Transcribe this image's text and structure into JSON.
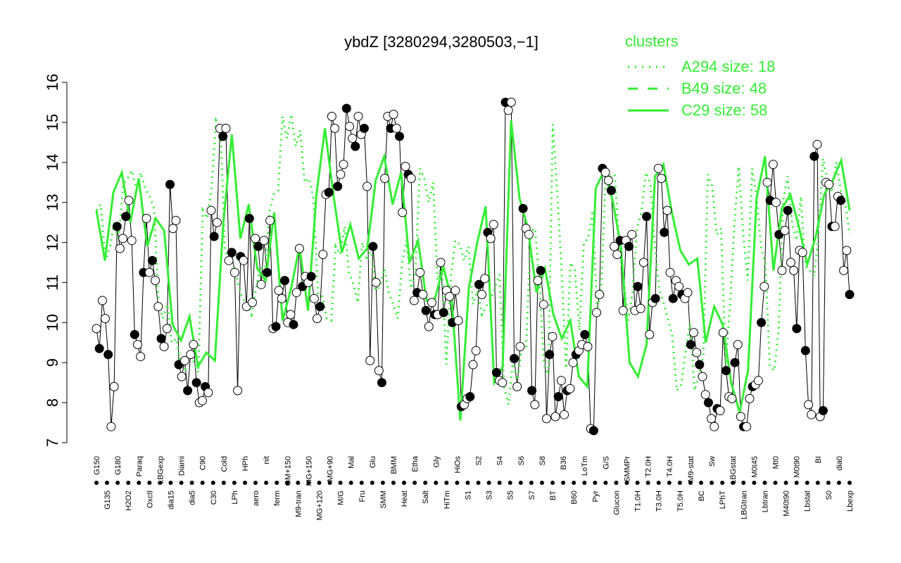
{
  "chart_data": {
    "type": "line",
    "title": "ybdZ [3280294,3280503,−1]",
    "xlabel": "",
    "ylabel": "",
    "ylim": [
      7,
      16
    ],
    "yticks": [
      7,
      8,
      9,
      10,
      11,
      12,
      13,
      14,
      15,
      16
    ],
    "grid": false,
    "x_tick_labels": [
      "G150",
      "G135",
      "G180",
      "H2O2",
      "Paraq",
      "Oxctl",
      "LBGexp",
      "dia15",
      "Diami",
      "dia5",
      "C90",
      "C30",
      "Cold",
      "LPh",
      "HPh",
      "aero",
      "nit",
      "ferm",
      "GM+150",
      "M9-tran",
      "MG+150",
      "MG+120",
      "MG+90",
      "M/G",
      "Mal",
      "Fru",
      "Glu",
      "SMM",
      "BMM",
      "Heat",
      "Etha",
      "Salt",
      "Gly",
      "HiTm",
      "HiOs",
      "S1",
      "S2",
      "S3",
      "S4",
      "S5",
      "S6",
      "S7",
      "S8",
      "BT",
      "B36",
      "B60",
      "LoTm",
      "Pyr",
      "G/S",
      "Glucon",
      "SMMPr",
      "T1.0H",
      "T2.0H",
      "T3.0H",
      "T4.0H",
      "T5.0H",
      "M9-stat",
      "BC",
      "Sw",
      "LPhT",
      "LBGstat",
      "LBGtran",
      "M0t45",
      "Lbtran",
      "Mt0",
      "M40t90",
      "M0t90",
      "Lbstat",
      "BI",
      "S0",
      "dia0",
      "Lbexp"
    ],
    "legend": {
      "title": "clusters",
      "placement": "top-right",
      "entries": [
        {
          "label": "A294 size: 18",
          "style": "dotted"
        },
        {
          "label": "B49 size: 48",
          "style": "dashed"
        },
        {
          "label": "C29 size: 58",
          "style": "solid"
        }
      ]
    },
    "colors": {
      "axis": "#000000",
      "cluster": "#33ee33",
      "point_open": "#ffffff",
      "point_filled": "#000000"
    },
    "series": [
      {
        "values": [
          9.85,
          9.35,
          10.55,
          10.1,
          9.2,
          7.4,
          8.4,
          12.4,
          11.85,
          12.1,
          12.65,
          13.05,
          12.05,
          9.7,
          9.45,
          9.15,
          11.25,
          12.6,
          11.25,
          11.55,
          11.05,
          10.4,
          9.6,
          9.4,
          9.85,
          13.45,
          12.35,
          12.55,
          8.95,
          8.65,
          9.05,
          8.3,
          9.2,
          9.45,
          8.5,
          8.0,
          8.05,
          8.4,
          8.25,
          12.8,
          12.15,
          12.5,
          14.85,
          14.65,
          14.85,
          11.55,
          11.75,
          11.25,
          8.3,
          11.65,
          11.55,
          10.4,
          12.6,
          10.5,
          12.1,
          11.9,
          10.95,
          12.05,
          11.25,
          12.55,
          9.85,
          9.9,
          10.8,
          10.6,
          11.05,
          10.0,
          10.2,
          9.95,
          10.75,
          11.85,
          10.9,
          11.15,
          11.0,
          11.15,
          10.6,
          10.1,
          10.4,
          11.7,
          13.2,
          13.25,
          15.15,
          14.85,
          13.4,
          13.7,
          13.95,
          15.35,
          14.9,
          14.6,
          14.4,
          15.15,
          14.7,
          14.85,
          13.4,
          9.05,
          11.9,
          11.0,
          8.8,
          8.5,
          13.6,
          15.15,
          14.85,
          15.2,
          14.85,
          14.65,
          12.75,
          13.9,
          13.7,
          13.6,
          10.55,
          10.75,
          11.25,
          10.7,
          10.3,
          9.9,
          10.5,
          10.2,
          10.2,
          11.5,
          10.25,
          10.8,
          10.65,
          10.0,
          10.8,
          10.05,
          7.9,
          7.95,
          8.1,
          8.15,
          8.95,
          9.3,
          10.95,
          10.7,
          11.1,
          12.25,
          12.1,
          12.45,
          8.75,
          8.55,
          8.5,
          15.5,
          15.3,
          15.5,
          9.1,
          8.4,
          9.4,
          12.85,
          12.35,
          12.2,
          8.3,
          7.95,
          11.05,
          11.3,
          10.45,
          7.6,
          9.2,
          9.65,
          7.65,
          8.15,
          8.55,
          7.7,
          8.3,
          8.35,
          9.0,
          9.2,
          9.3,
          9.45,
          9.7,
          9.4,
          7.35,
          7.3,
          10.25,
          10.7,
          13.85,
          13.75,
          13.55,
          13.3,
          11.9,
          11.7,
          12.05,
          10.3,
          12.05,
          11.9,
          12.2,
          10.3,
          10.9,
          10.35,
          11.5,
          12.65,
          9.7,
          10.5,
          10.6,
          13.85,
          13.6,
          12.25,
          12.8,
          11.25,
          10.6,
          11.05,
          10.9,
          10.7,
          10.6,
          10.75,
          9.45,
          9.75,
          9.25,
          8.95,
          8.65,
          8.2,
          8.0,
          7.6,
          7.4,
          7.85,
          7.8,
          9.75,
          8.8,
          8.15,
          8.1,
          9.0,
          9.45,
          7.65,
          7.4,
          7.4,
          8.1,
          8.4,
          8.45,
          8.55,
          10.0,
          10.9,
          13.5,
          13.05,
          13.95,
          13.0,
          12.2,
          11.3,
          12.3,
          12.8,
          11.5,
          11.3,
          9.85,
          11.8,
          11.75,
          9.3,
          7.95,
          7.7,
          14.15,
          14.45,
          7.65,
          7.8,
          13.5,
          13.45,
          12.4,
          12.4,
          13.15,
          13.05,
          11.3,
          11.8,
          10.7
        ]
      },
      {
        "values": [
          12.8,
          12.95,
          11.55,
          11.85,
          12.5,
          12.05,
          13.45,
          13.6,
          13.8,
          13.3,
          13.75,
          13.35,
          13.15,
          12.85,
          10.55,
          10.1,
          10.45,
          9.5,
          9.6,
          9.0,
          8.85,
          9.2,
          9.0,
          8.75,
          12.8,
          12.6,
          13.35,
          15.05,
          14.85,
          11.8,
          11.6,
          11.45,
          10.95,
          10.6,
          10.45,
          10.2,
          10.85,
          11.4,
          11.25,
          12.75,
          13.2,
          13.3,
          15.15,
          14.6,
          15.2,
          14.4,
          14.8,
          13.5,
          13.6,
          13.1,
          10.7,
          10.65,
          10.1,
          10.05,
          11.9,
          11.7,
          12.4,
          11.25,
          10.95,
          10.5,
          12.0,
          11.55,
          11.85,
          10.8,
          10.9,
          11.35,
          10.75,
          10.45,
          10.1,
          11.5,
          12.05,
          10.85,
          11.25,
          13.85,
          13.6,
          13.0,
          13.5,
          11.05,
          11.45,
          8.95,
          11.15,
          12.05,
          11.95,
          11.55,
          11.9,
          10.45,
          10.8,
          10.2,
          10.4,
          10.6,
          10.9,
          11.2,
          8.4,
          7.95,
          9.05,
          8.5,
          9.35,
          9.4,
          12.3,
          12.35,
          11.05,
          8.95,
          8.7,
          14.95,
          13.25,
          11.3,
          8.85,
          11.5,
          11.3,
          9.8,
          12.0,
          12.1,
          12.8,
          10.3,
          10.9,
          13.9,
          13.65,
          13.7,
          11.95,
          11.1,
          10.05,
          10.75,
          12.35,
          12.75,
          13.75,
          13.5,
          11.95,
          10.85,
          10.5,
          10.1,
          9.65,
          8.3,
          8.45,
          9.3,
          10.0,
          8.3,
          8.7,
          9.2,
          13.7,
          13.4,
          12.2,
          12.35,
          8.95,
          10.4,
          12.5,
          13.9,
          12.2,
          11.05,
          13.85,
          13.15,
          11.9,
          11.45,
          8.9,
          8.8,
          9.85,
          13.05,
          13.65,
          12.5,
          12.05,
          13.15,
          11.4,
          11.3,
          11.15,
          12.2,
          14.1,
          13.55,
          13.25,
          14.0,
          13.3,
          13.0,
          12.2
        ]
      },
      {
        "values": [
          12.8,
          11.55,
          13.25,
          13.75,
          12.5,
          13.6,
          11.9,
          12.6,
          12.3,
          9.95,
          9.55,
          10.15,
          8.9,
          9.25,
          9.05,
          12.5,
          14.7,
          12.1,
          12.95,
          11.35,
          11.05,
          12.75,
          10.05,
          10.85,
          11.9,
          10.3,
          13.2,
          14.85,
          13.2,
          11.75,
          12.45,
          11.6,
          11.85,
          13.55,
          14.15,
          12.95,
          13.75,
          11.5,
          12.05,
          10.55,
          10.6,
          11.4,
          10.55,
          7.55,
          10.85,
          12.0,
          12.9,
          8.5,
          8.9,
          15.05,
          13.1,
          12.35,
          10.75,
          11.35,
          10.2,
          9.6,
          10.05,
          8.65,
          8.4,
          13.35,
          13.8,
          13.05,
          11.85,
          9.0,
          8.65,
          9.45,
          13.65,
          13.95,
          12.75,
          11.8,
          11.45,
          11.6,
          9.5,
          10.4,
          9.95,
          8.5,
          7.75,
          8.8,
          13.1,
          14.15,
          11.3,
          12.85,
          13.2,
          12.4,
          11.45,
          12.15,
          13.2,
          13.55,
          14.05,
          12.8
        ]
      }
    ]
  }
}
